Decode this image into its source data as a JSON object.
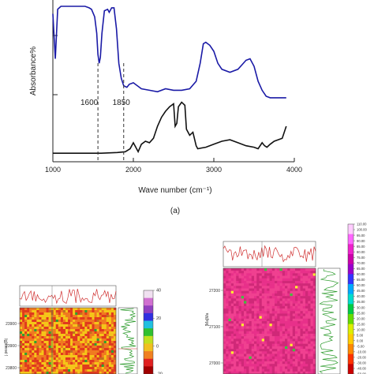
{
  "chart_data": [
    {
      "type": "line",
      "panel_label": "(a)",
      "xlabel": "Wave number (cm⁻¹)",
      "ylabel": "Absorbance%",
      "xlim": [
        1000,
        4000
      ],
      "x_ticks": [
        1000,
        2000,
        3000,
        4000
      ],
      "annotations": [
        {
          "text": "1600",
          "x": 1560
        },
        {
          "text": "1850",
          "x": 1880
        }
      ],
      "grid": false,
      "series": [
        {
          "color": "#1a1aa6",
          "x": [
            1000,
            1030,
            1060,
            1100,
            1150,
            1200,
            1250,
            1300,
            1350,
            1400,
            1450,
            1480,
            1520,
            1545,
            1560,
            1575,
            1590,
            1610,
            1640,
            1680,
            1700,
            1730,
            1760,
            1790,
            1820,
            1850,
            1880,
            1920,
            1950,
            2000,
            2100,
            2200,
            2300,
            2400,
            2500,
            2600,
            2700,
            2780,
            2830,
            2870,
            2900,
            2950,
            3000,
            3050,
            3100,
            3200,
            3300,
            3350,
            3400,
            3450,
            3500,
            3550,
            3600,
            3650,
            3700,
            3800,
            3900
          ],
          "y": [
            0.95,
            0.65,
            0.98,
            1.0,
            1.0,
            1.0,
            1.0,
            1.0,
            1.0,
            1.0,
            0.99,
            0.98,
            0.93,
            0.82,
            0.68,
            0.62,
            0.66,
            0.82,
            0.97,
            0.98,
            0.96,
            0.99,
            0.99,
            0.85,
            0.62,
            0.52,
            0.47,
            0.46,
            0.48,
            0.49,
            0.45,
            0.44,
            0.43,
            0.45,
            0.44,
            0.44,
            0.45,
            0.5,
            0.62,
            0.75,
            0.76,
            0.74,
            0.7,
            0.62,
            0.58,
            0.56,
            0.58,
            0.61,
            0.64,
            0.65,
            0.6,
            0.5,
            0.44,
            0.4,
            0.39,
            0.39,
            0.39
          ]
        },
        {
          "color": "#111111",
          "x": [
            1000,
            1200,
            1400,
            1600,
            1800,
            1900,
            1960,
            2000,
            2030,
            2060,
            2100,
            2150,
            2200,
            2250,
            2300,
            2350,
            2400,
            2450,
            2500,
            2520,
            2540,
            2560,
            2600,
            2640,
            2660,
            2700,
            2740,
            2780,
            2800,
            2900,
            3000,
            3100,
            3200,
            3300,
            3400,
            3500,
            3550,
            3600,
            3630,
            3660,
            3700,
            3750,
            3800,
            3850,
            3900
          ],
          "y": [
            0.02,
            0.02,
            0.02,
            0.02,
            0.025,
            0.03,
            0.05,
            0.09,
            0.06,
            0.03,
            0.08,
            0.1,
            0.09,
            0.12,
            0.2,
            0.26,
            0.3,
            0.33,
            0.35,
            0.2,
            0.22,
            0.33,
            0.36,
            0.34,
            0.18,
            0.14,
            0.16,
            0.07,
            0.05,
            0.06,
            0.08,
            0.1,
            0.11,
            0.09,
            0.07,
            0.06,
            0.05,
            0.09,
            0.07,
            0.06,
            0.08,
            0.1,
            0.11,
            0.12,
            0.2
          ]
        }
      ]
    },
    {
      "type": "heatmap",
      "y_ticks": [
        "23900",
        "23900",
        "23800"
      ],
      "ylabel": "j.peaxs[Bj",
      "colorbar_ticks": [
        "40",
        "20",
        "0",
        "-20"
      ],
      "colorbar_colors": [
        "#f0e0f0",
        "#d070d0",
        "#9040c0",
        "#3030e0",
        "#20c0e0",
        "#30c030",
        "#c0e020",
        "#f0c020",
        "#f08020",
        "#e02020",
        "#a00000"
      ],
      "dominant_colors": [
        "#e03a1e",
        "#f5c518",
        "#f07a20"
      ]
    },
    {
      "type": "heatmap",
      "y_ticks": [
        "27200",
        "27100",
        "27000"
      ],
      "ylabel": "[Ma]Ma",
      "colorbar_ticks": [
        "110.00",
        "100.00",
        "95.00",
        "90.00",
        "85.00",
        "80.00",
        "75.00",
        "70.00",
        "65.00",
        "60.00",
        "55.00",
        "50.00",
        "45.00",
        "40.00",
        "35.00",
        "30.00",
        "25.00",
        "20.00",
        "15.00",
        "10.00",
        "5.00",
        "0.00",
        "-5.00",
        "-10.00",
        "-20.00",
        "-30.00",
        "-40.00",
        "-50.00"
      ],
      "colorbar_colors": [
        "#ffccff",
        "#ff66ff",
        "#ee22cc",
        "#cc00aa",
        "#9900cc",
        "#3333ff",
        "#00aaff",
        "#00ddcc",
        "#00cc44",
        "#66dd00",
        "#ddee00",
        "#ffcc00",
        "#ff8800",
        "#ff3300",
        "#cc0000"
      ],
      "dominant_colors": [
        "#e8308a",
        "#f04090",
        "#d02878"
      ]
    }
  ]
}
